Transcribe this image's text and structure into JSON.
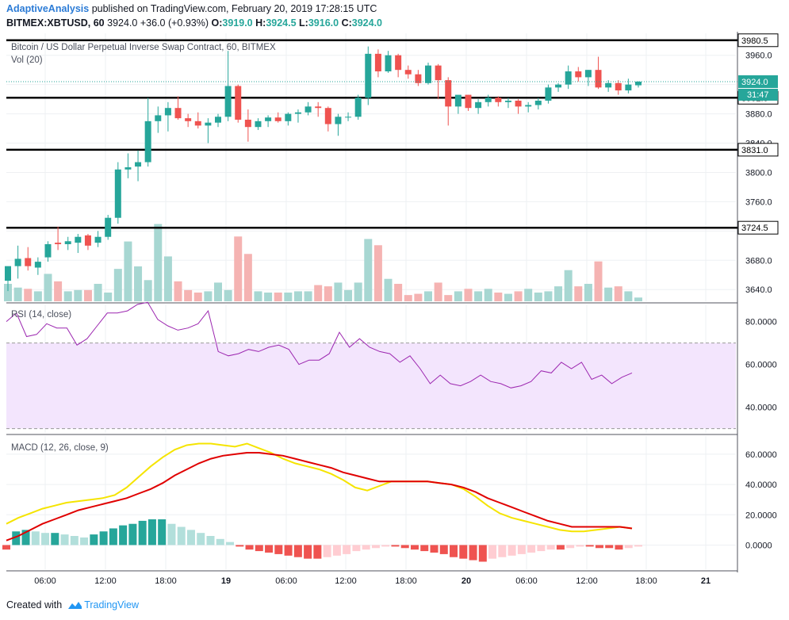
{
  "header": {
    "author": "AdaptiveAnalysis",
    "published_text": "published on TradingView.com, February 20, 2019 17:28:15 UTC",
    "symbol_line": "BITMEX:XBTUSD, 60",
    "last": "3924.0",
    "change": "+36.0 (+0.93%)",
    "o_label": "O:",
    "o": "3919.0",
    "h_label": "H:",
    "h": "3924.5",
    "l_label": "L:",
    "l": "3916.0",
    "c_label": "C:",
    "c": "3924.0"
  },
  "footer": {
    "created_with": "Created with",
    "brand": "TradingView"
  },
  "colors": {
    "up": "#26a69a",
    "down": "#ef5350",
    "rsi": "#9c27b0",
    "rsi_band": "#f3e5fd",
    "macd": "#e00000",
    "signal": "#f5e400",
    "grid": "#eef0f3",
    "axis_text": "#131722"
  },
  "chart_data": [
    {
      "type": "candlestick",
      "title": "Bitcoin / US Dollar Perpetual Inverse Swap Contract, 60, BITMEX",
      "volume_label": "Vol (20)",
      "y_ticks": [
        3640,
        3680,
        3720,
        3760,
        3800,
        3840,
        3880,
        3920,
        3960
      ],
      "y_tick_labels": [
        "3640.0",
        "3680.0",
        "3720.0",
        "3760.0",
        "3800.0",
        "3840.0",
        "3880.0",
        "3920.0",
        "3960.0"
      ],
      "ylim": [
        3624,
        3990
      ],
      "x_tick_labels": [
        "06:00",
        "12:00",
        "18:00",
        "19",
        "06:00",
        "12:00",
        "18:00",
        "20",
        "06:00",
        "12:00",
        "18:00",
        "21"
      ],
      "horizontal_lines": [
        3980.5,
        3902.0,
        3831.0,
        3724.5
      ],
      "horizontal_line_labels": [
        "3980.5",
        "3902.0",
        "3831.0",
        "3724.5"
      ],
      "last_price": 3924.0,
      "last_price_label": "3924.0",
      "countdown": "31:47",
      "candles": [
        {
          "o": 3652,
          "h": 3670,
          "l": 3638,
          "c": 3672
        },
        {
          "o": 3672,
          "h": 3700,
          "l": 3655,
          "c": 3682
        },
        {
          "o": 3683,
          "h": 3698,
          "l": 3666,
          "c": 3672
        },
        {
          "o": 3670,
          "h": 3684,
          "l": 3660,
          "c": 3678
        },
        {
          "o": 3684,
          "h": 3706,
          "l": 3678,
          "c": 3702
        },
        {
          "o": 3704,
          "h": 3726,
          "l": 3694,
          "c": 3702
        },
        {
          "o": 3702,
          "h": 3712,
          "l": 3694,
          "c": 3706
        },
        {
          "o": 3704,
          "h": 3716,
          "l": 3690,
          "c": 3712
        },
        {
          "o": 3714,
          "h": 3716,
          "l": 3694,
          "c": 3700
        },
        {
          "o": 3704,
          "h": 3720,
          "l": 3698,
          "c": 3712
        },
        {
          "o": 3712,
          "h": 3742,
          "l": 3708,
          "c": 3738
        },
        {
          "o": 3738,
          "h": 3814,
          "l": 3730,
          "c": 3804
        },
        {
          "o": 3804,
          "h": 3826,
          "l": 3792,
          "c": 3807
        },
        {
          "o": 3808,
          "h": 3830,
          "l": 3788,
          "c": 3814
        },
        {
          "o": 3814,
          "h": 3902,
          "l": 3808,
          "c": 3870
        },
        {
          "o": 3870,
          "h": 3890,
          "l": 3854,
          "c": 3878
        },
        {
          "o": 3878,
          "h": 3896,
          "l": 3856,
          "c": 3888
        },
        {
          "o": 3888,
          "h": 3904,
          "l": 3872,
          "c": 3874
        },
        {
          "o": 3874,
          "h": 3880,
          "l": 3862,
          "c": 3870
        },
        {
          "o": 3870,
          "h": 3882,
          "l": 3860,
          "c": 3864
        },
        {
          "o": 3864,
          "h": 3874,
          "l": 3840,
          "c": 3868
        },
        {
          "o": 3868,
          "h": 3880,
          "l": 3862,
          "c": 3876
        },
        {
          "o": 3876,
          "h": 3966,
          "l": 3870,
          "c": 3918
        },
        {
          "o": 3918,
          "h": 3920,
          "l": 3868,
          "c": 3872
        },
        {
          "o": 3872,
          "h": 3886,
          "l": 3842,
          "c": 3862
        },
        {
          "o": 3862,
          "h": 3874,
          "l": 3858,
          "c": 3870
        },
        {
          "o": 3870,
          "h": 3878,
          "l": 3862,
          "c": 3875
        },
        {
          "o": 3875,
          "h": 3882,
          "l": 3868,
          "c": 3870
        },
        {
          "o": 3870,
          "h": 3882,
          "l": 3864,
          "c": 3880
        },
        {
          "o": 3880,
          "h": 3886,
          "l": 3868,
          "c": 3882
        },
        {
          "o": 3882,
          "h": 3896,
          "l": 3878,
          "c": 3890
        },
        {
          "o": 3890,
          "h": 3896,
          "l": 3876,
          "c": 3888
        },
        {
          "o": 3888,
          "h": 3890,
          "l": 3856,
          "c": 3866
        },
        {
          "o": 3866,
          "h": 3880,
          "l": 3850,
          "c": 3876
        },
        {
          "o": 3876,
          "h": 3882,
          "l": 3870,
          "c": 3876
        },
        {
          "o": 3876,
          "h": 3906,
          "l": 3872,
          "c": 3902
        },
        {
          "o": 3902,
          "h": 3972,
          "l": 3892,
          "c": 3962
        },
        {
          "o": 3962,
          "h": 3968,
          "l": 3930,
          "c": 3938
        },
        {
          "o": 3938,
          "h": 3966,
          "l": 3936,
          "c": 3960
        },
        {
          "o": 3960,
          "h": 3962,
          "l": 3930,
          "c": 3940
        },
        {
          "o": 3940,
          "h": 3946,
          "l": 3928,
          "c": 3934
        },
        {
          "o": 3934,
          "h": 3940,
          "l": 3918,
          "c": 3922
        },
        {
          "o": 3922,
          "h": 3950,
          "l": 3920,
          "c": 3946
        },
        {
          "o": 3946,
          "h": 3948,
          "l": 3900,
          "c": 3926
        },
        {
          "o": 3926,
          "h": 3930,
          "l": 3864,
          "c": 3890
        },
        {
          "o": 3890,
          "h": 3904,
          "l": 3880,
          "c": 3906
        },
        {
          "o": 3906,
          "h": 3906,
          "l": 3884,
          "c": 3888
        },
        {
          "o": 3888,
          "h": 3900,
          "l": 3880,
          "c": 3896
        },
        {
          "o": 3896,
          "h": 3906,
          "l": 3890,
          "c": 3902
        },
        {
          "o": 3902,
          "h": 3904,
          "l": 3890,
          "c": 3896
        },
        {
          "o": 3896,
          "h": 3902,
          "l": 3888,
          "c": 3898
        },
        {
          "o": 3898,
          "h": 3900,
          "l": 3880,
          "c": 3890
        },
        {
          "o": 3890,
          "h": 3896,
          "l": 3882,
          "c": 3892
        },
        {
          "o": 3892,
          "h": 3902,
          "l": 3886,
          "c": 3898
        },
        {
          "o": 3898,
          "h": 3920,
          "l": 3894,
          "c": 3916
        },
        {
          "o": 3916,
          "h": 3922,
          "l": 3910,
          "c": 3920
        },
        {
          "o": 3920,
          "h": 3946,
          "l": 3914,
          "c": 3938
        },
        {
          "o": 3938,
          "h": 3944,
          "l": 3924,
          "c": 3930
        },
        {
          "o": 3930,
          "h": 3940,
          "l": 3918,
          "c": 3940
        },
        {
          "o": 3940,
          "h": 3958,
          "l": 3914,
          "c": 3916
        },
        {
          "o": 3916,
          "h": 3926,
          "l": 3910,
          "c": 3922
        },
        {
          "o": 3922,
          "h": 3926,
          "l": 3906,
          "c": 3912
        },
        {
          "o": 3912,
          "h": 3928,
          "l": 3908,
          "c": 3920
        },
        {
          "o": 3919,
          "h": 3924.5,
          "l": 3916,
          "c": 3924
        }
      ],
      "volume": [
        14,
        11,
        10,
        8,
        22,
        16,
        8,
        9,
        9,
        14,
        7,
        26,
        48,
        28,
        17,
        62,
        36,
        16,
        9,
        7,
        8,
        15,
        9,
        52,
        38,
        8,
        7,
        7,
        7,
        8,
        8,
        13,
        12,
        15,
        9,
        15,
        50,
        45,
        18,
        14,
        5,
        6,
        8,
        15,
        5,
        8,
        10,
        8,
        10,
        7,
        6,
        8,
        10,
        7,
        8,
        12,
        25,
        12,
        14,
        32,
        11,
        12,
        8,
        3
      ]
    },
    {
      "type": "line",
      "title": "RSI (14, close)",
      "ylim": [
        28,
        88
      ],
      "y_ticks": [
        40,
        60,
        80
      ],
      "y_tick_labels": [
        "40.0000",
        "60.0000",
        "80.0000"
      ],
      "band": [
        30,
        70
      ],
      "values": [
        80,
        84,
        73,
        74,
        79,
        77,
        77,
        69,
        72,
        78,
        84,
        84,
        85,
        88,
        89,
        81,
        78,
        76,
        77,
        79,
        85,
        66,
        64,
        65,
        67,
        66,
        68,
        69,
        67,
        60,
        62,
        62,
        65,
        75,
        68,
        72,
        68,
        66,
        65,
        61,
        64,
        58,
        51,
        55,
        51,
        50,
        52,
        55,
        52,
        51,
        49,
        50,
        52,
        57,
        56,
        61,
        58,
        61,
        53,
        55,
        51,
        54,
        56
      ]
    },
    {
      "type": "line",
      "title": "MACD (12, 26, close, 9)",
      "ylim": [
        -16,
        72
      ],
      "y_ticks": [
        0,
        20,
        40,
        60
      ],
      "y_tick_labels": [
        "0.0000",
        "20.0000",
        "40.0000",
        "60.0000"
      ],
      "series": [
        {
          "values": [
            3,
            6,
            10,
            14,
            17,
            20,
            23,
            25,
            27,
            29,
            31,
            34,
            37,
            41,
            46,
            50,
            54,
            57,
            59,
            60,
            61,
            61,
            60,
            59,
            57,
            55,
            53,
            51,
            48,
            46,
            44,
            42,
            42,
            42,
            42,
            42,
            41,
            40,
            38,
            35,
            31,
            28,
            25,
            22,
            19,
            16,
            14,
            12,
            12,
            12,
            12,
            12,
            11
          ]
        },
        {
          "values": [
            14,
            18,
            21,
            24,
            26,
            28,
            29,
            30,
            31,
            33,
            38,
            45,
            52,
            58,
            63,
            66,
            67,
            67,
            66,
            65,
            67,
            64,
            61,
            57,
            54,
            52,
            50,
            47,
            43,
            38,
            36,
            39,
            42,
            42,
            42,
            42,
            41,
            40,
            37,
            32,
            26,
            21,
            18,
            16,
            14,
            12,
            10,
            9,
            9,
            10,
            11,
            12,
            11
          ]
        },
        {
          "values": [
            -3,
            9,
            10,
            9,
            8,
            8,
            7,
            6,
            5,
            7,
            9,
            11,
            13,
            14,
            16,
            17,
            17,
            14,
            12,
            10,
            8,
            6,
            4,
            2,
            -1,
            -3,
            -4,
            -5,
            -6,
            -7,
            -8,
            -9,
            -9,
            -8,
            -7,
            -6,
            -4,
            -3,
            -2,
            -1,
            -1,
            -2,
            -3,
            -4,
            -5,
            -6,
            -8,
            -9,
            -10,
            -11,
            -9,
            -8,
            -7,
            -6,
            -5,
            -4,
            -3,
            -3,
            -2,
            -1,
            -1,
            -2,
            -2,
            -3,
            -2,
            -1
          ]
        }
      ]
    }
  ]
}
